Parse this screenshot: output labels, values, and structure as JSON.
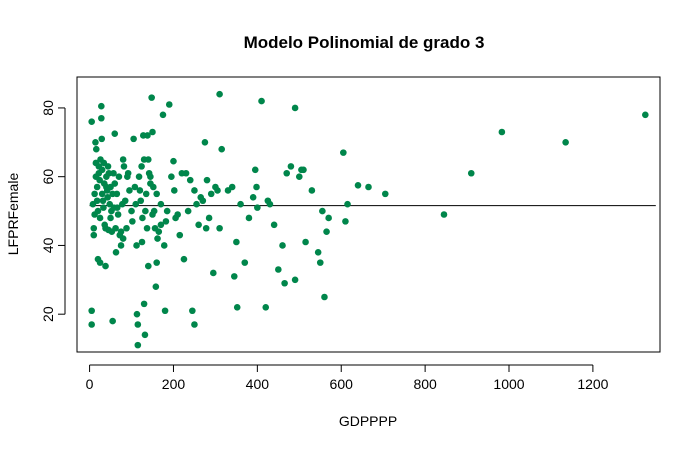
{
  "chart_data": {
    "type": "scatter",
    "title": "Modelo Polinomial de grado 3",
    "xlabel": "GDPPPP",
    "ylabel": "LFPRFemale",
    "xlim": [
      -30,
      1360
    ],
    "ylim": [
      9,
      89
    ],
    "xticks": [
      0,
      200,
      400,
      600,
      800,
      1000,
      1200
    ],
    "yticks": [
      20,
      40,
      60,
      80
    ],
    "grid": false,
    "point_color": "#00864B",
    "line_color": "#000000",
    "fit_line": {
      "x": [
        0,
        1350
      ],
      "y": [
        51.6,
        51.6
      ]
    },
    "points": [
      [
        5,
        76
      ],
      [
        5,
        21
      ],
      [
        5,
        17
      ],
      [
        8,
        52
      ],
      [
        10,
        45
      ],
      [
        10,
        43
      ],
      [
        12,
        55
      ],
      [
        12,
        49
      ],
      [
        14,
        70
      ],
      [
        15,
        64
      ],
      [
        15,
        60
      ],
      [
        16,
        68
      ],
      [
        18,
        57
      ],
      [
        18,
        53
      ],
      [
        20,
        36
      ],
      [
        20,
        50
      ],
      [
        22,
        63
      ],
      [
        22,
        61
      ],
      [
        24,
        59
      ],
      [
        25,
        48
      ],
      [
        25,
        35
      ],
      [
        26,
        65
      ],
      [
        28,
        80.5
      ],
      [
        28,
        77
      ],
      [
        29,
        71
      ],
      [
        30,
        62
      ],
      [
        30,
        55
      ],
      [
        32,
        53
      ],
      [
        33,
        51
      ],
      [
        34,
        64
      ],
      [
        35,
        58
      ],
      [
        36,
        46
      ],
      [
        38,
        45
      ],
      [
        38,
        34
      ],
      [
        40,
        60
      ],
      [
        40,
        57
      ],
      [
        42,
        56
      ],
      [
        43,
        54
      ],
      [
        44,
        63
      ],
      [
        45,
        44.5
      ],
      [
        46,
        61
      ],
      [
        48,
        52
      ],
      [
        50,
        48
      ],
      [
        50,
        57
      ],
      [
        52,
        50
      ],
      [
        53,
        44
      ],
      [
        55,
        55
      ],
      [
        55,
        18
      ],
      [
        57,
        61
      ],
      [
        58,
        51
      ],
      [
        60,
        58
      ],
      [
        60,
        72.5
      ],
      [
        62,
        45
      ],
      [
        63,
        38
      ],
      [
        65,
        55
      ],
      [
        66,
        51
      ],
      [
        68,
        49
      ],
      [
        70,
        60
      ],
      [
        72,
        43
      ],
      [
        75,
        44
      ],
      [
        75,
        40
      ],
      [
        78,
        52
      ],
      [
        80,
        65
      ],
      [
        80,
        42
      ],
      [
        82,
        63
      ],
      [
        85,
        53
      ],
      [
        88,
        45
      ],
      [
        90,
        60
      ],
      [
        92,
        61
      ],
      [
        95,
        56
      ],
      [
        100,
        50
      ],
      [
        102,
        47
      ],
      [
        105,
        71
      ],
      [
        108,
        57
      ],
      [
        110,
        52
      ],
      [
        112,
        40
      ],
      [
        113,
        20
      ],
      [
        115,
        17
      ],
      [
        115,
        11
      ],
      [
        118,
        60
      ],
      [
        120,
        56
      ],
      [
        122,
        53
      ],
      [
        124,
        63
      ],
      [
        125,
        41
      ],
      [
        126,
        48
      ],
      [
        128,
        72
      ],
      [
        130,
        65
      ],
      [
        130,
        23
      ],
      [
        132,
        14
      ],
      [
        133,
        50
      ],
      [
        135,
        55
      ],
      [
        137,
        45
      ],
      [
        138,
        72
      ],
      [
        140,
        65
      ],
      [
        140,
        34
      ],
      [
        142,
        61
      ],
      [
        145,
        60
      ],
      [
        145,
        58
      ],
      [
        148,
        83
      ],
      [
        150,
        73
      ],
      [
        150,
        49
      ],
      [
        152,
        57
      ],
      [
        154,
        50
      ],
      [
        156,
        45
      ],
      [
        158,
        28
      ],
      [
        160,
        55
      ],
      [
        160,
        35
      ],
      [
        162,
        42
      ],
      [
        165,
        44
      ],
      [
        170,
        52
      ],
      [
        170,
        46
      ],
      [
        175,
        78
      ],
      [
        178,
        40
      ],
      [
        180,
        21
      ],
      [
        182,
        47
      ],
      [
        185,
        50
      ],
      [
        190,
        81
      ],
      [
        195,
        60
      ],
      [
        200,
        64.5
      ],
      [
        202,
        56
      ],
      [
        205,
        48
      ],
      [
        210,
        49
      ],
      [
        215,
        43
      ],
      [
        220,
        61
      ],
      [
        225,
        36
      ],
      [
        230,
        61
      ],
      [
        235,
        50
      ],
      [
        240,
        59
      ],
      [
        245,
        21
      ],
      [
        250,
        56
      ],
      [
        250,
        17
      ],
      [
        255,
        52
      ],
      [
        260,
        46
      ],
      [
        265,
        54
      ],
      [
        270,
        53
      ],
      [
        275,
        70
      ],
      [
        278,
        45
      ],
      [
        280,
        59
      ],
      [
        285,
        48
      ],
      [
        290,
        55
      ],
      [
        295,
        32
      ],
      [
        300,
        57
      ],
      [
        305,
        56
      ],
      [
        310,
        84
      ],
      [
        310,
        45
      ],
      [
        315,
        68
      ],
      [
        330,
        56
      ],
      [
        340,
        57
      ],
      [
        345,
        31
      ],
      [
        350,
        41
      ],
      [
        352,
        22
      ],
      [
        360,
        52
      ],
      [
        370,
        35
      ],
      [
        380,
        48
      ],
      [
        390,
        54
      ],
      [
        395,
        62
      ],
      [
        398,
        57
      ],
      [
        400,
        51
      ],
      [
        410,
        82
      ],
      [
        420,
        22
      ],
      [
        425,
        53
      ],
      [
        430,
        52
      ],
      [
        440,
        46
      ],
      [
        450,
        33
      ],
      [
        460,
        40
      ],
      [
        465,
        29
      ],
      [
        470,
        61
      ],
      [
        480,
        63
      ],
      [
        490,
        30
      ],
      [
        490,
        80
      ],
      [
        500,
        60
      ],
      [
        505,
        62
      ],
      [
        510,
        62
      ],
      [
        515,
        41
      ],
      [
        530,
        56
      ],
      [
        545,
        38
      ],
      [
        550,
        35
      ],
      [
        555,
        50
      ],
      [
        560,
        25
      ],
      [
        565,
        44
      ],
      [
        570,
        48
      ],
      [
        605,
        67
      ],
      [
        610,
        47
      ],
      [
        615,
        52
      ],
      [
        640,
        57.5
      ],
      [
        665,
        57
      ],
      [
        705,
        55
      ],
      [
        845,
        49
      ],
      [
        910,
        61
      ],
      [
        983,
        73
      ],
      [
        1135,
        70
      ],
      [
        1325,
        78
      ]
    ]
  }
}
